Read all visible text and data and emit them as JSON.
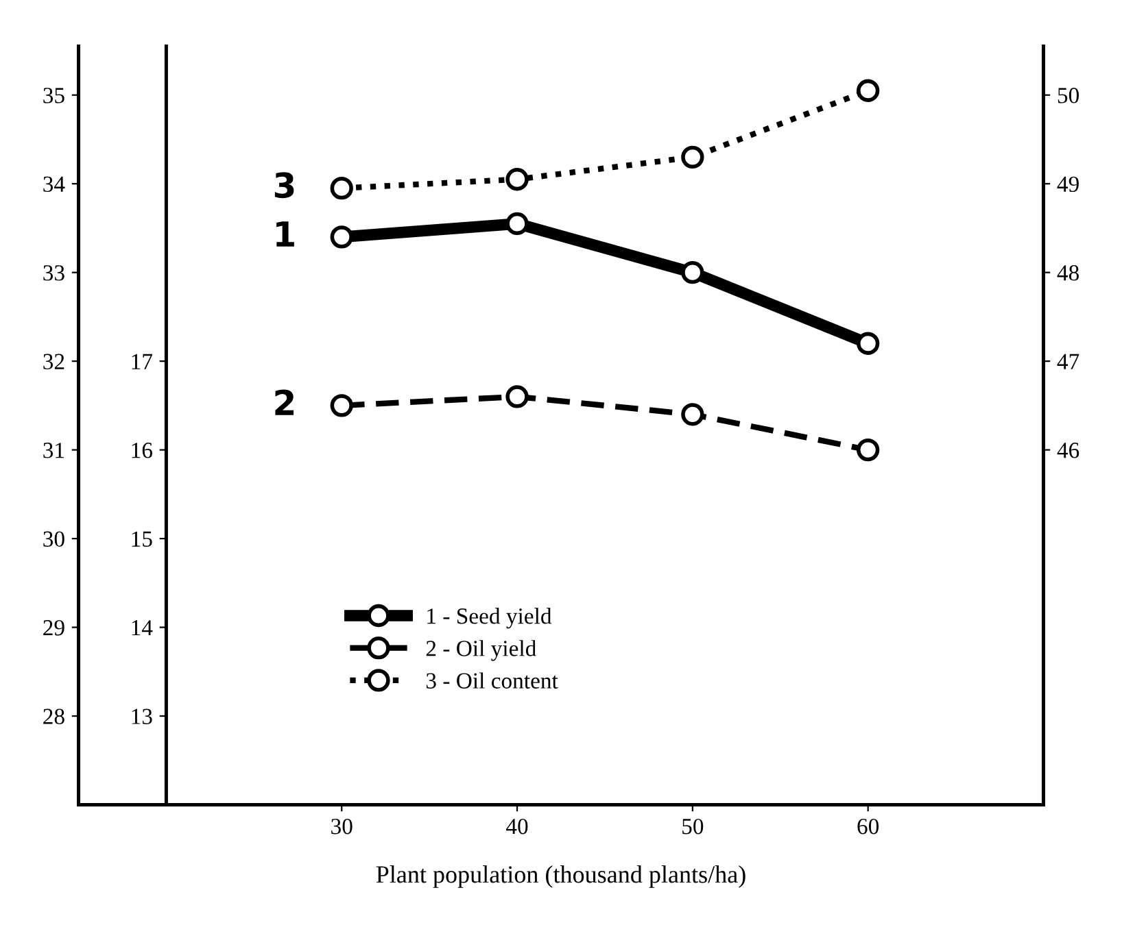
{
  "chart_data": {
    "type": "line",
    "xlabel": "Plant population (thousand plants/ha)",
    "x": [
      30,
      40,
      50,
      60
    ],
    "xlim": [
      15,
      70
    ],
    "xticks": [
      30,
      40,
      50,
      60
    ],
    "ylim": [
      27,
      35.55
    ],
    "yticks": [
      28,
      29,
      30,
      31,
      32,
      33,
      34,
      35
    ],
    "y3lim": [
      12,
      20.55
    ],
    "y3ticks": [
      13,
      14,
      15,
      16,
      17
    ],
    "y2lim": [
      42,
      50.55
    ],
    "y2ticks": [
      46,
      47,
      48,
      49,
      50
    ],
    "series": [
      {
        "name": "1 - Seed yield",
        "color": "#000000",
        "values": [
          33.4,
          33.55,
          33.0,
          32.2
        ],
        "axis": "y",
        "line_style": "solid"
      },
      {
        "name": "2 - Oil yield",
        "color": "#000000",
        "values": [
          16.5,
          16.6,
          16.4,
          16.0
        ],
        "axis": "y3",
        "line_style": "dashed"
      },
      {
        "name": "3 - Oil content",
        "color": "#000000",
        "values": [
          48.95,
          49.05,
          49.3,
          50.05
        ],
        "axis": "y2",
        "line_style": "dotted"
      }
    ],
    "annotations": [
      "1",
      "2",
      "3"
    ],
    "marker": "circle",
    "grid": false,
    "legend": "bottom left"
  }
}
